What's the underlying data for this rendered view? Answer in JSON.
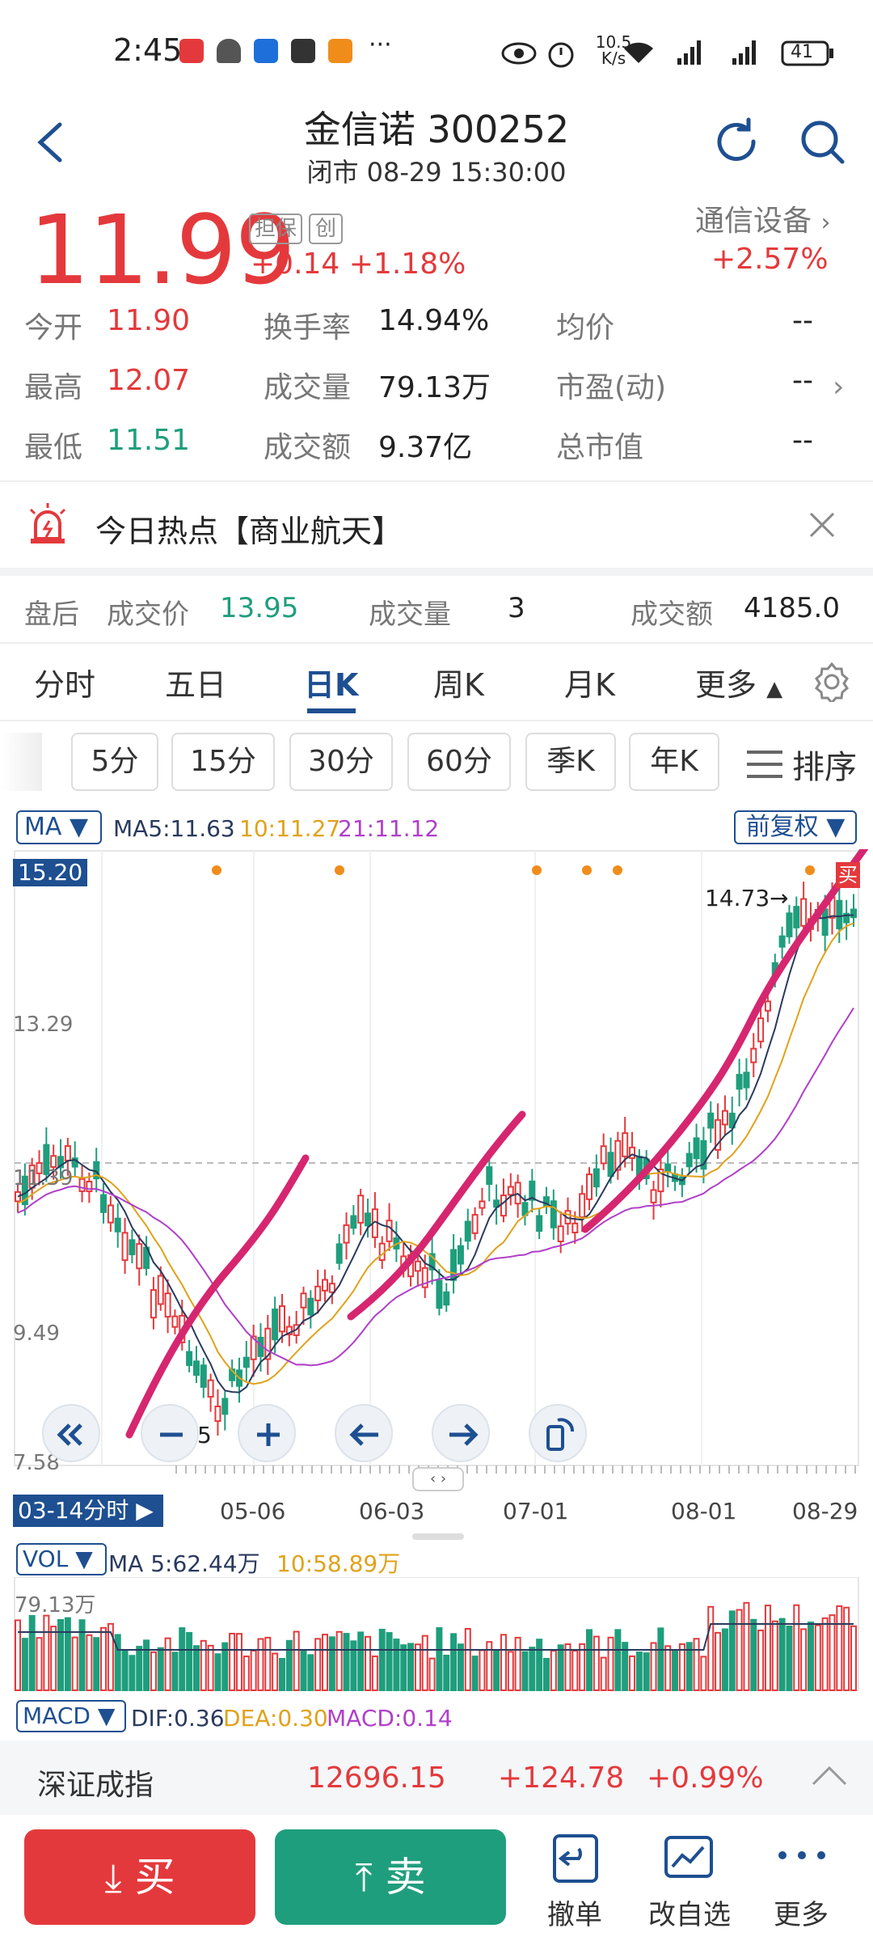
{
  "status_bar": {
    "time": "2:45",
    "net_speed": "10.5 K/s",
    "battery": "41",
    "more": "···"
  },
  "header": {
    "title": "金信诺 300252",
    "subtitle": "闭市 08-29 15:30:00"
  },
  "quote": {
    "price": "11.99",
    "tags": [
      "担保",
      "创"
    ],
    "change": "+0.14",
    "change_pct": "+1.18%",
    "industry": "通信设备",
    "industry_chg": "+2.57%",
    "stats": [
      {
        "label": "今开",
        "value": "11.90"
      },
      {
        "label": "换手率",
        "value": "14.94%"
      },
      {
        "label": "均价",
        "value": "--"
      },
      {
        "label": "最高",
        "value": "12.07"
      },
      {
        "label": "成交量",
        "value": "79.13万"
      },
      {
        "label": "市盈(动)",
        "value": "--"
      },
      {
        "label": "最低",
        "value": "11.51"
      },
      {
        "label": "成交额",
        "value": "9.37亿"
      },
      {
        "label": "总市值",
        "value": "--"
      }
    ]
  },
  "hot": {
    "text": "今日热点【商业航天】"
  },
  "after_hours": {
    "label": "盘后",
    "price_label": "成交价",
    "price": "13.95",
    "vol_label": "成交量",
    "vol": "3",
    "amt_label": "成交额",
    "amt": "4185.0"
  },
  "tabs": [
    "分时",
    "五日",
    "日K",
    "周K",
    "月K",
    "更多"
  ],
  "active_tab": "日K",
  "periods": [
    "5分",
    "15分",
    "30分",
    "60分",
    "季K",
    "年K"
  ],
  "sort_label": "排序",
  "kchart": {
    "ma_selector": "MA",
    "ma5": "MA5:11.63",
    "ma10": "10:11.27",
    "ma21": "21:11.12",
    "adjust": "前复权",
    "y_labels": [
      "15.20",
      "13.29",
      "11.39",
      "9.49",
      "7.58"
    ],
    "high_label": "14.73→",
    "low_label": "←8.05",
    "buy_mark": "买",
    "x_labels": [
      "05-06",
      "06-03",
      "07-01",
      "08-01",
      "08-29"
    ],
    "start_label": "03-14分时",
    "colors": {
      "up": "#e4393c",
      "down": "#1f9e7d",
      "ma5": "#2a3a5e",
      "ma10": "#e0a21b",
      "ma21": "#b03fc9",
      "pen": "#d6266f"
    }
  },
  "vol": {
    "selector": "VOL",
    "ma5": "MA 5:62.44万",
    "ma10": "10:58.89万",
    "top": "79.13万"
  },
  "macd": {
    "selector": "MACD",
    "dif": "DIF:0.36",
    "dea": "DEA:0.30",
    "macd": "MACD:0.14"
  },
  "index_bar": {
    "name": "深证成指",
    "value": "12696.15",
    "chg": "+124.78",
    "pct": "+0.99%"
  },
  "bottom": {
    "buy": "买",
    "sell": "卖",
    "cancel": "撤单",
    "watch": "改自选",
    "more": "更多"
  }
}
